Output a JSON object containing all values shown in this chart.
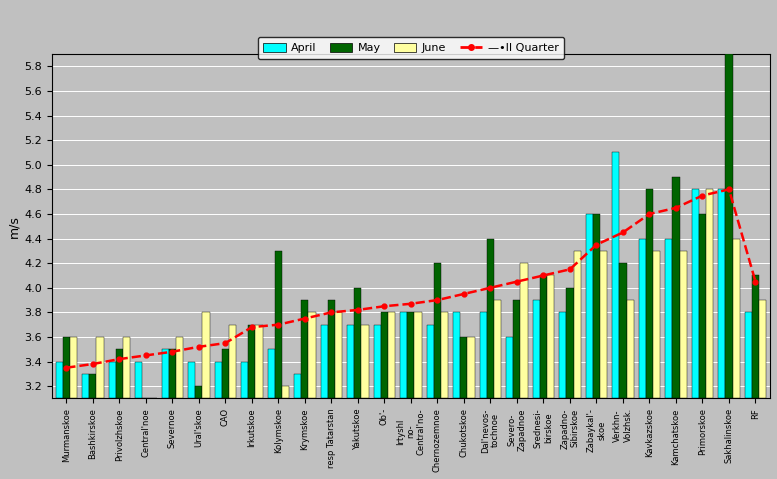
{
  "categories": [
    "Murmanskoe",
    "Bashkirskoe",
    "Privolzhskoe",
    "Central'noe",
    "Severnoe",
    "Ural'skoe",
    "CAO",
    "Irkutskoe",
    "Kolymskoe",
    "Krymskoe",
    "resp Tatarstan",
    "Yakutskoe",
    "Ob'-",
    "Irtyshl\nno-\nCentral'no-",
    "Chernozemnoe",
    "Chukotskoe",
    "Dal'nevos-\ntochnoe",
    "Severo-\nZapadnoe",
    "Srednesi-\nbirskoe",
    "Zapadno-\nSibirskoe",
    "Zabaykal'-\nskoe",
    "Verkhn-\nVolzhsk.",
    "Kavkazskoe",
    "Kamchatskoe",
    "Primorskoe",
    "Sakhalinskoe",
    "RF"
  ],
  "april": [
    3.4,
    3.3,
    3.4,
    3.4,
    3.5,
    3.4,
    3.4,
    3.4,
    3.5,
    3.3,
    3.7,
    3.7,
    3.7,
    3.8,
    3.7,
    3.8,
    3.8,
    3.6,
    3.9,
    3.8,
    4.6,
    5.1,
    4.4,
    4.4,
    4.8,
    4.8,
    3.8
  ],
  "may": [
    3.6,
    3.3,
    3.5,
    3.1,
    3.5,
    3.2,
    3.5,
    3.7,
    4.3,
    3.9,
    3.9,
    4.0,
    3.8,
    3.8,
    4.2,
    3.6,
    4.4,
    3.9,
    4.1,
    4.0,
    4.6,
    4.2,
    4.8,
    4.9,
    4.6,
    5.9,
    4.1
  ],
  "june": [
    3.6,
    3.6,
    3.6,
    3.1,
    3.6,
    3.8,
    3.7,
    3.7,
    3.2,
    3.8,
    3.8,
    3.7,
    3.8,
    3.8,
    3.8,
    3.6,
    3.9,
    4.2,
    4.1,
    4.3,
    4.3,
    3.9,
    4.3,
    4.3,
    4.8,
    4.4,
    3.9
  ],
  "quarter": [
    3.35,
    3.38,
    3.42,
    3.45,
    3.48,
    3.52,
    3.55,
    3.68,
    3.7,
    3.75,
    3.8,
    3.82,
    3.85,
    3.87,
    3.9,
    3.95,
    4.0,
    4.05,
    4.1,
    4.15,
    4.35,
    4.45,
    4.6,
    4.65,
    4.75,
    4.8,
    4.05
  ],
  "color_april": "#00FFFF",
  "color_may": "#006400",
  "color_june": "#FFFFA0",
  "color_quarter": "#FF0000",
  "ylabel": "m/s",
  "ymin": 3.1,
  "ymax": 5.9,
  "bar_bottom": 3.1,
  "yticks": [
    3.2,
    3.4,
    3.6,
    3.8,
    4.0,
    4.2,
    4.4,
    4.6,
    4.8,
    5.0,
    5.2,
    5.4,
    5.6,
    5.8
  ],
  "bg_color": "#C0C0C0",
  "legend_labels": [
    "April",
    "May",
    "June",
    "••II Quarter"
  ],
  "bar_width": 0.27
}
